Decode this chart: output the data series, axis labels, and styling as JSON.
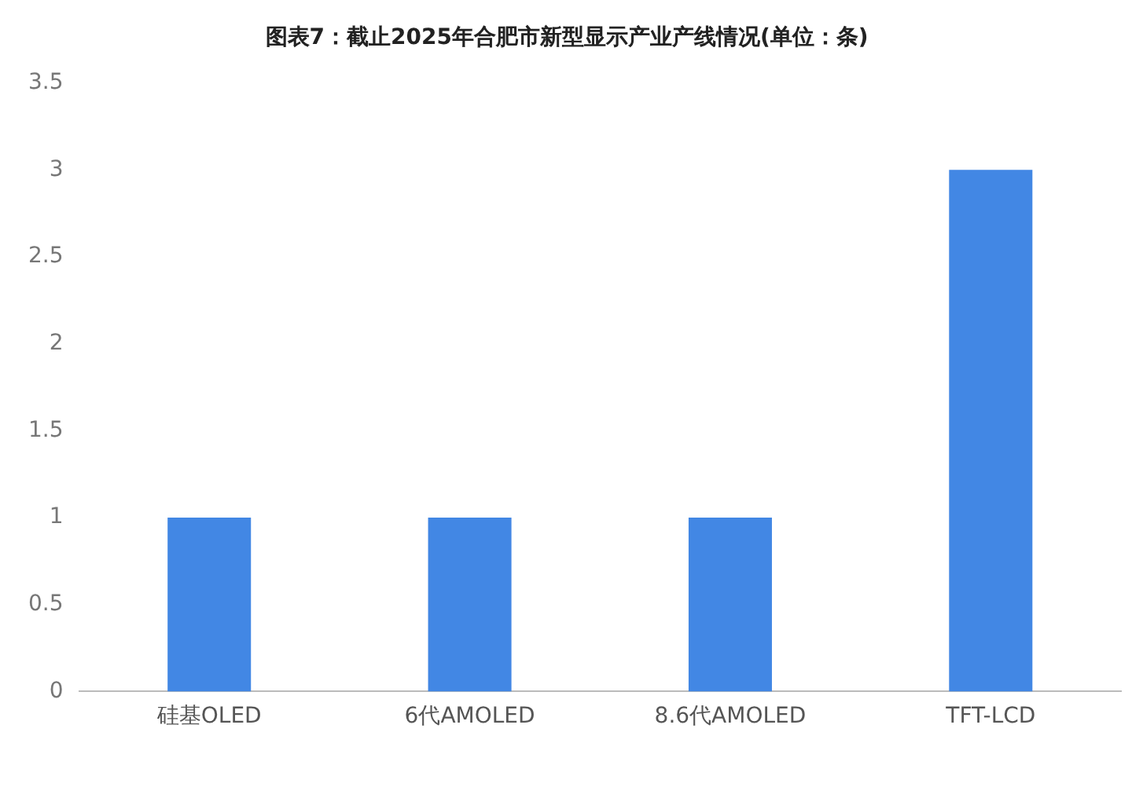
{
  "chart_data": {
    "type": "bar",
    "title": "图表7：截止2025年合肥市新型显示产业产线情况(单位：条)",
    "categories": [
      "硅基OLED",
      "6代AMOLED",
      "8.6代AMOLED",
      "TFT-LCD"
    ],
    "values": [
      1,
      1,
      1,
      3
    ],
    "color": "#4287e4",
    "ylim": [
      0,
      3.5
    ],
    "yticks": [
      0,
      0.5,
      1,
      1.5,
      2,
      2.5,
      3,
      3.5
    ],
    "grid": false,
    "legend": false
  }
}
